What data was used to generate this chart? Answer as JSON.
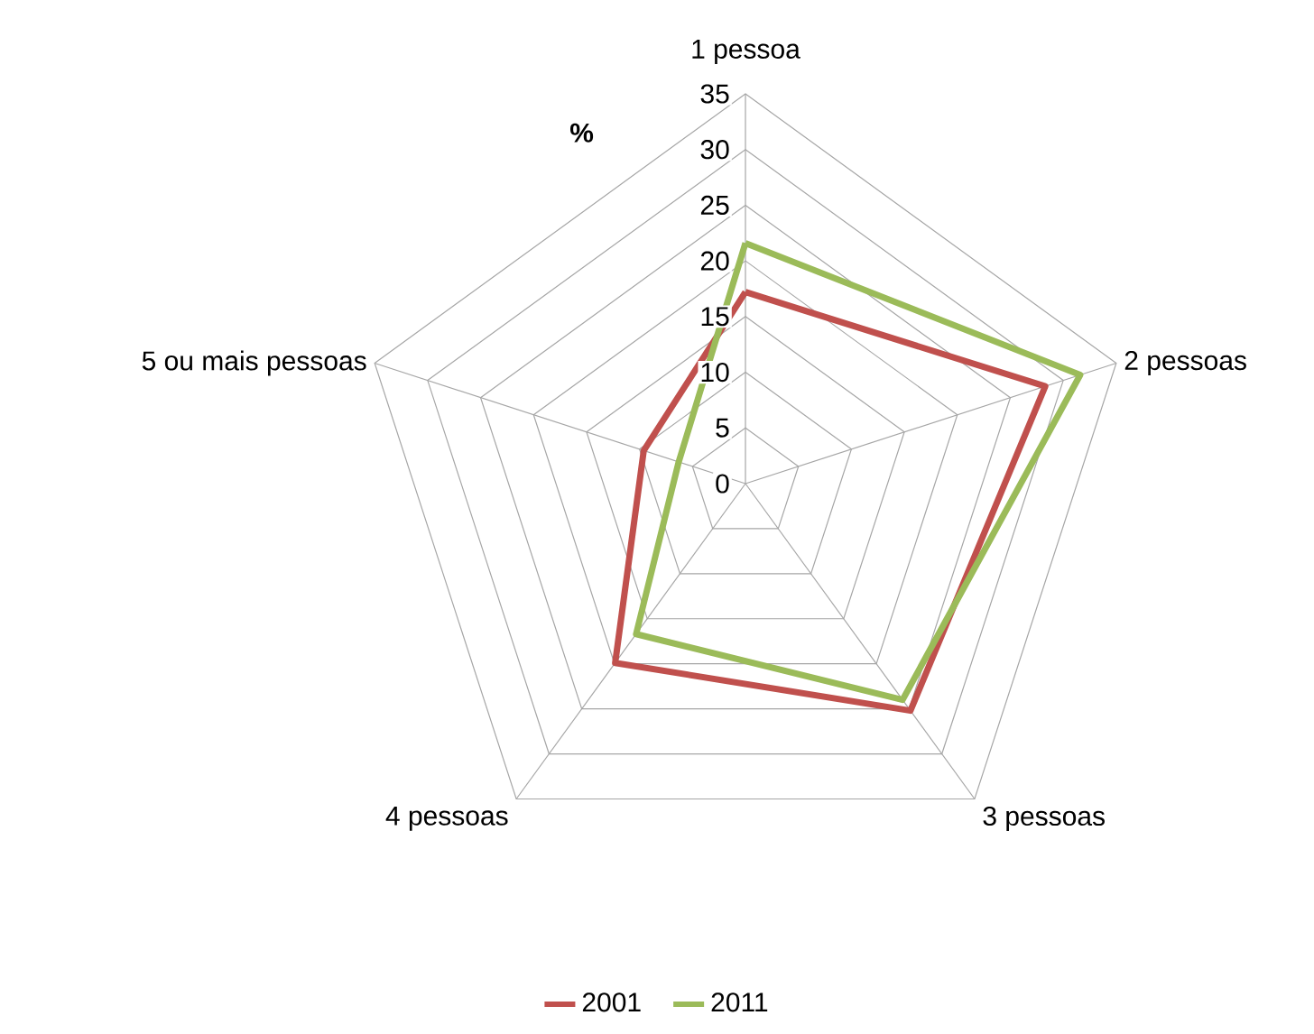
{
  "chart_data": {
    "type": "radar",
    "ylabel": "%",
    "categories": [
      "1 pessoa",
      "2 pessoas",
      "3 pessoas",
      "4 pessoas",
      "5 ou mais pessoas"
    ],
    "series": [
      {
        "name": "2001",
        "color": "#c0504d",
        "values": [
          17.2,
          28.3,
          25.2,
          19.9,
          9.6
        ]
      },
      {
        "name": "2011",
        "color": "#9bbb59",
        "values": [
          21.6,
          31.6,
          24.0,
          16.7,
          6.3
        ]
      }
    ],
    "ylim": [
      0,
      35
    ],
    "yticks": [
      0,
      5,
      10,
      15,
      20,
      25,
      30,
      35
    ],
    "grid": true,
    "legend": "bottom",
    "marker": "none",
    "line_style": "solid"
  }
}
